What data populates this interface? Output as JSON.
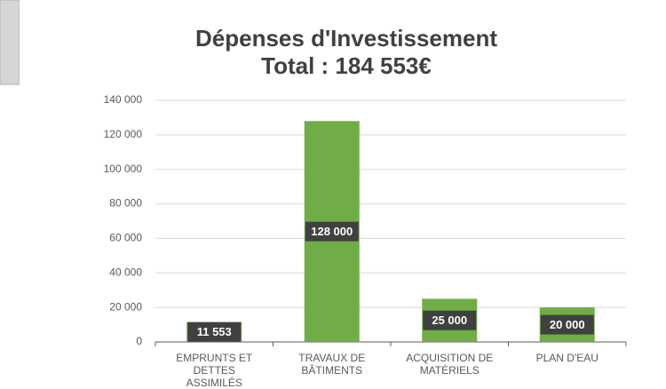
{
  "chart_data": {
    "type": "bar",
    "title": "Dépenses d'Investissement",
    "subtitle": "Total : 184 553€",
    "categories": [
      "EMPRUNTS ET DETTES ASSIMILÉS",
      "TRAVAUX DE BÂTIMENTS",
      "ACQUISITION DE MATÉRIELS",
      "PLAN D'EAU"
    ],
    "values": [
      11553,
      128000,
      25000,
      20000
    ],
    "value_labels": [
      "11 553",
      "128 000",
      "25 000",
      "20 000"
    ],
    "color": "#70ad47",
    "ylim": [
      0,
      140000
    ],
    "yticks": [
      0,
      {
        "value": 20000,
        "label": "20 000"
      },
      {
        "value": 40000,
        "label": "40 000"
      },
      {
        "value": 60000,
        "label": "60 000"
      },
      {
        "value": 80000,
        "label": "80 000"
      },
      {
        "value": 100000,
        "label": "100 000"
      },
      {
        "value": 120000,
        "label": "120 000"
      },
      {
        "value": 140000,
        "label": "140 000"
      }
    ],
    "grid": true
  }
}
